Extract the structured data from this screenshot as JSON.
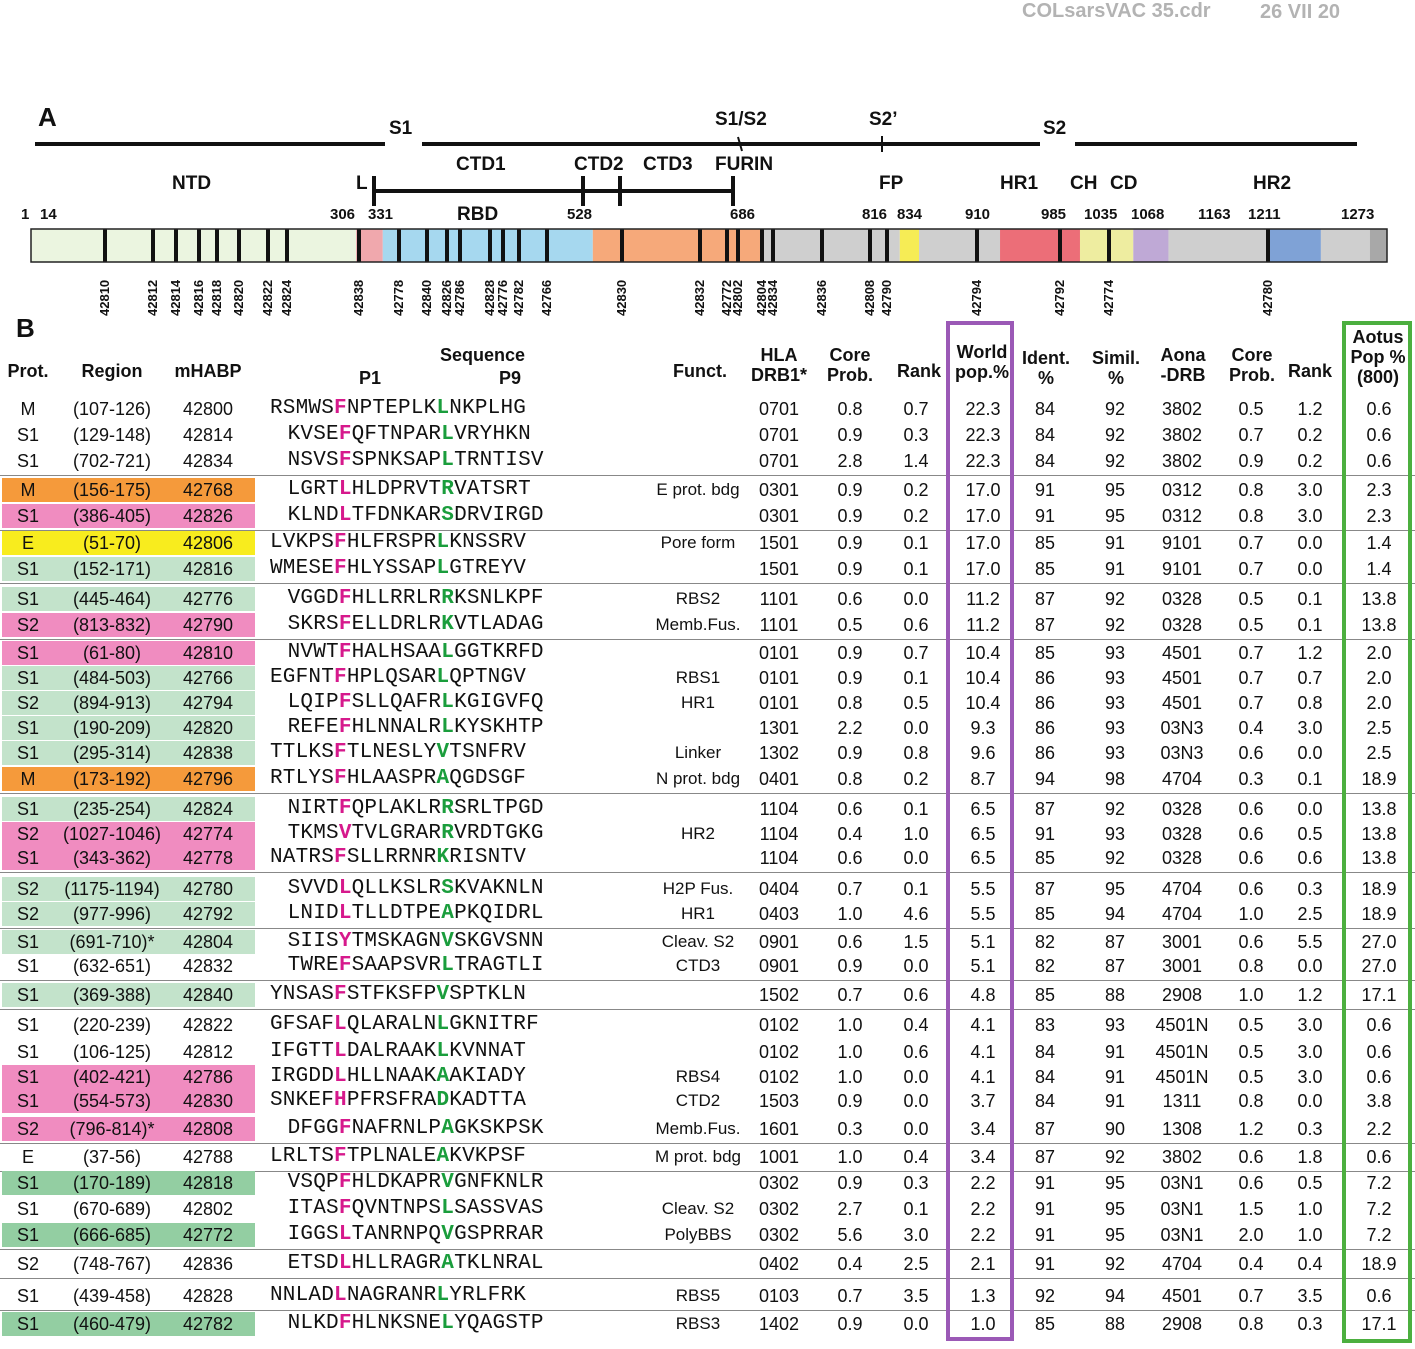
{
  "file_header": {
    "filename": "COLsarsVAC 35.cdr",
    "date": "26 VII 20"
  },
  "panel_a": {
    "label": "A",
    "subunits": [
      "S1",
      "S1/S2",
      "S2’",
      "S2"
    ],
    "domain_labels": [
      "NTD",
      "L",
      "CTD1",
      "CTD2",
      "CTD3",
      "FURIN",
      "RBD",
      "FP",
      "HR1",
      "CH",
      "CD",
      "HR2"
    ],
    "positions": [
      "1",
      "14",
      "306",
      "331",
      "528",
      "686",
      "816",
      "834",
      "910",
      "985",
      "1035",
      "1068",
      "1163",
      "1211",
      "1273"
    ],
    "peptide_codes": [
      "42810",
      "42812",
      "42814",
      "42816",
      "42818",
      "42820",
      "42822",
      "42824",
      "42838",
      "42778",
      "42840",
      "42826",
      "42786",
      "42828",
      "42776",
      "42782",
      "42766",
      "42830",
      "42832",
      "42772",
      "42802",
      "42804",
      "42834",
      "42836",
      "42808",
      "42790",
      "42794",
      "42792",
      "42774",
      "42780"
    ],
    "colors": {
      "ntd": "#ebf5e0",
      "linker": "#f0a8ad",
      "rbd": "#a6d8ef",
      "ctd": "#f6a97a",
      "gray": "#cfcfcf",
      "fp": "#f6ec55",
      "hr1": "#ec6e78",
      "ch": "#eeeda0",
      "cd": "#bfa9d6",
      "hr2": "#7fa2d6",
      "end": "#a8a8a8"
    }
  },
  "panel_b": {
    "label": "B",
    "headers": {
      "prot": "Prot.",
      "region": "Region",
      "mhabp": "mHABP",
      "sequence": "Sequence",
      "p1": "P1",
      "p9": "P9",
      "funct": "Funct.",
      "hla_1": "HLA",
      "hla_2": "DRB1*",
      "core_1": "Core",
      "core_2": "Prob.",
      "rank": "Rank",
      "world_1": "World",
      "world_2": "pop.%",
      "ident_1": "Ident.",
      "ident_2": "%",
      "simil_1": "Simil.",
      "simil_2": "%",
      "aona_1": "Aona",
      "aona_2": "-DRB",
      "core2_1": "Core",
      "core2_2": "Prob.",
      "rank2": "Rank",
      "aotus_1": "Aotus",
      "aotus_2": "Pop %",
      "aotus_3": "(800)"
    },
    "colors": {
      "world_box": "#9b59b6",
      "aotus_box": "#4caf3f",
      "orange": "#f59a3b",
      "pink": "#f08cc0",
      "green_light": "#c3e3cb",
      "green_dark": "#93cea2",
      "yellow": "#f8ec1e",
      "p1": "#d6198c",
      "p9": "#1a9d3c"
    },
    "rows": [
      {
        "prot": "M",
        "region": "(107-126)",
        "mhabp": "42800",
        "seq": "RSMWSFNPTEPLKLNKPLHG",
        "funct": "",
        "hla": "0701",
        "core": "0.8",
        "rank": "0.7",
        "world": "22.3",
        "ident": "84",
        "simil": "92",
        "aona": "3802",
        "core2": "0.5",
        "rank2": "1.2",
        "aotus": "0.6"
      },
      {
        "prot": "S1",
        "region": "(129-148)",
        "mhabp": "42814",
        "seq": "KVSEFQFTNPARLVRYHKN",
        "funct": "",
        "hla": "0701",
        "core": "0.9",
        "rank": "0.3",
        "world": "22.3",
        "ident": "84",
        "simil": "92",
        "aona": "3802",
        "core2": "0.7",
        "rank2": "0.2",
        "aotus": "0.6"
      },
      {
        "prot": "S1",
        "region": "(702-721)",
        "mhabp": "42834",
        "seq": "NSVSFSPNKSAPLTRNTISV",
        "funct": "",
        "hla": "0701",
        "core": "2.8",
        "rank": "1.4",
        "world": "22.3",
        "ident": "84",
        "simil": "92",
        "aona": "3802",
        "core2": "0.9",
        "rank2": "0.2",
        "aotus": "0.6"
      },
      {
        "prot": "M",
        "region": "(156-175)",
        "mhabp": "42768",
        "seq": "LGRTLHLDPRVTRVATSRT",
        "funct": "E prot. bdg",
        "hla": "0301",
        "core": "0.9",
        "rank": "0.2",
        "world": "17.0",
        "ident": "91",
        "simil": "95",
        "aona": "0312",
        "core2": "0.8",
        "rank2": "3.0",
        "aotus": "2.3"
      },
      {
        "prot": "S1",
        "region": "(386-405)",
        "mhabp": "42826",
        "seq": "KLNDLTFDNKARSDRVIRGD",
        "funct": "",
        "hla": "0301",
        "core": "0.9",
        "rank": "0.2",
        "world": "17.0",
        "ident": "91",
        "simil": "95",
        "aona": "0312",
        "core2": "0.8",
        "rank2": "3.0",
        "aotus": "2.3"
      },
      {
        "prot": "E",
        "region": "(51-70)",
        "mhabp": "42806",
        "seq": "LVKPSFHLFRSPRLKNSSRV",
        "funct": "Pore form",
        "hla": "1501",
        "core": "0.9",
        "rank": "0.1",
        "world": "17.0",
        "ident": "85",
        "simil": "91",
        "aona": "9101",
        "core2": "0.7",
        "rank2": "0.0",
        "aotus": "1.4"
      },
      {
        "prot": "S1",
        "region": "(152-171)",
        "mhabp": "42816",
        "seq": "WMESEFHLYSSAPLGTREYV",
        "funct": "",
        "hla": "1501",
        "core": "0.9",
        "rank": "0.1",
        "world": "17.0",
        "ident": "85",
        "simil": "91",
        "aona": "9101",
        "core2": "0.7",
        "rank2": "0.0",
        "aotus": "1.4"
      },
      {
        "prot": "S1",
        "region": "(445-464)",
        "mhabp": "42776",
        "seq": "VGGDFHLLRRLRRKSNLKPF",
        "funct": "RBS2",
        "hla": "1101",
        "core": "0.6",
        "rank": "0.0",
        "world": "11.2",
        "ident": "87",
        "simil": "92",
        "aona": "0328",
        "core2": "0.5",
        "rank2": "0.1",
        "aotus": "13.8"
      },
      {
        "prot": "S2",
        "region": "(813-832)",
        "mhabp": "42790",
        "seq": "SKRSFELLDRLRKVTLADAG",
        "funct": "Memb.Fus.",
        "hla": "1101",
        "core": "0.5",
        "rank": "0.6",
        "world": "11.2",
        "ident": "87",
        "simil": "92",
        "aona": "0328",
        "core2": "0.5",
        "rank2": "0.1",
        "aotus": "13.8"
      },
      {
        "prot": "S1",
        "region": "(61-80)",
        "mhabp": "42810",
        "seq": "NVWTFHALHSAALGGTKRFD",
        "funct": "",
        "hla": "0101",
        "core": "0.9",
        "rank": "0.7",
        "world": "10.4",
        "ident": "85",
        "simil": "93",
        "aona": "4501",
        "core2": "0.7",
        "rank2": "1.2",
        "aotus": "2.0"
      },
      {
        "prot": "S1",
        "region": "(484-503)",
        "mhabp": "42766",
        "seq": "EGFNTFHPLQSARLQPTNGV",
        "funct": "RBS1",
        "hla": "0101",
        "core": "0.9",
        "rank": "0.1",
        "world": "10.4",
        "ident": "86",
        "simil": "93",
        "aona": "4501",
        "core2": "0.7",
        "rank2": "0.7",
        "aotus": "2.0"
      },
      {
        "prot": "S2",
        "region": "(894-913)",
        "mhabp": "42794",
        "seq": "LQIPFSLLQAFRLKGIGVFQ",
        "funct": "HR1",
        "hla": "0101",
        "core": "0.8",
        "rank": "0.5",
        "world": "10.4",
        "ident": "86",
        "simil": "93",
        "aona": "4501",
        "core2": "0.7",
        "rank2": "0.8",
        "aotus": "2.0"
      },
      {
        "prot": "S1",
        "region": "(190-209)",
        "mhabp": "42820",
        "seq": "REFEFHLNNALRLKYSKHTP",
        "funct": "",
        "hla": "1301",
        "core": "2.2",
        "rank": "0.0",
        "world": "9.3",
        "ident": "86",
        "simil": "93",
        "aona": "03N3",
        "core2": "0.4",
        "rank2": "3.0",
        "aotus": "2.5"
      },
      {
        "prot": "S1",
        "region": "(295-314)",
        "mhabp": "42838",
        "seq": "TTLKSFTLNESLYVTSNFRV",
        "funct": "Linker",
        "hla": "1302",
        "core": "0.9",
        "rank": "0.8",
        "world": "9.6",
        "ident": "86",
        "simil": "93",
        "aona": "03N3",
        "core2": "0.6",
        "rank2": "0.0",
        "aotus": "2.5"
      },
      {
        "prot": "M",
        "region": "(173-192)",
        "mhabp": "42796",
        "seq": "RTLYSFHLAASPRAQGDSGF",
        "funct": "N prot. bdg",
        "hla": "0401",
        "core": "0.8",
        "rank": "0.2",
        "world": "8.7",
        "ident": "94",
        "simil": "98",
        "aona": "4704",
        "core2": "0.3",
        "rank2": "0.1",
        "aotus": "18.9"
      },
      {
        "prot": "S1",
        "region": "(235-254)",
        "mhabp": "42824",
        "seq": "NIRTFQPLAKLRRSRLTPGD",
        "funct": "",
        "hla": "1104",
        "core": "0.6",
        "rank": "0.1",
        "world": "6.5",
        "ident": "87",
        "simil": "92",
        "aona": "0328",
        "core2": "0.6",
        "rank2": "0.0",
        "aotus": "13.8"
      },
      {
        "prot": "S2",
        "region": "(1027-1046)",
        "mhabp": "42774",
        "seq": "TKMSVTVLGRARRVRDTGKG",
        "funct": "HR2",
        "hla": "1104",
        "core": "0.4",
        "rank": "1.0",
        "world": "6.5",
        "ident": "91",
        "simil": "93",
        "aona": "0328",
        "core2": "0.6",
        "rank2": "0.5",
        "aotus": "13.8"
      },
      {
        "prot": "S1",
        "region": "(343-362)",
        "mhabp": "42778",
        "seq": "NATRSFSLLRRNRKRISNTV",
        "funct": "",
        "hla": "1104",
        "core": "0.6",
        "rank": "0.0",
        "world": "6.5",
        "ident": "85",
        "simil": "92",
        "aona": "0328",
        "core2": "0.6",
        "rank2": "0.6",
        "aotus": "13.8"
      },
      {
        "prot": "S2",
        "region": "(1175-1194)",
        "mhabp": "42780",
        "seq": "SVVDLQLLKSLRSKVAKNLN",
        "funct": "H2P Fus.",
        "hla": "0404",
        "core": "0.7",
        "rank": "0.1",
        "world": "5.5",
        "ident": "87",
        "simil": "95",
        "aona": "4704",
        "core2": "0.6",
        "rank2": "0.3",
        "aotus": "18.9"
      },
      {
        "prot": "S2",
        "region": "(977-996)",
        "mhabp": "42792",
        "seq": "LNIDLTLLDTPEAPKQIDRL",
        "funct": "HR1",
        "hla": "0403",
        "core": "1.0",
        "rank": "4.6",
        "world": "5.5",
        "ident": "85",
        "simil": "94",
        "aona": "4704",
        "core2": "1.0",
        "rank2": "2.5",
        "aotus": "18.9"
      },
      {
        "prot": "S1",
        "region": "(691-710)*",
        "mhabp": "42804",
        "seq": "SIISYTMSKAGNVSKGVSNN",
        "funct": "Cleav. S2",
        "hla": "0901",
        "core": "0.6",
        "rank": "1.5",
        "world": "5.1",
        "ident": "82",
        "simil": "87",
        "aona": "3001",
        "core2": "0.6",
        "rank2": "5.5",
        "aotus": "27.0"
      },
      {
        "prot": "S1",
        "region": "(632-651)",
        "mhabp": "42832",
        "seq": "TWREFSAAPSVRLTRAGTLI",
        "funct": "CTD3",
        "hla": "0901",
        "core": "0.9",
        "rank": "0.0",
        "world": "5.1",
        "ident": "82",
        "simil": "87",
        "aona": "3001",
        "core2": "0.8",
        "rank2": "0.0",
        "aotus": "27.0"
      },
      {
        "prot": "S1",
        "region": "(369-388)",
        "mhabp": "42840",
        "seq": "YNSASFSTFKSFPVSPTKLN",
        "funct": "",
        "hla": "1502",
        "core": "0.7",
        "rank": "0.6",
        "world": "4.8",
        "ident": "85",
        "simil": "88",
        "aona": "2908",
        "core2": "1.0",
        "rank2": "1.2",
        "aotus": "17.1"
      },
      {
        "prot": "S1",
        "region": "(220-239)",
        "mhabp": "42822",
        "seq": "GFSAFLQLARALNLGKNITRF",
        "funct": "",
        "hla": "0102",
        "core": "1.0",
        "rank": "0.4",
        "world": "4.1",
        "ident": "83",
        "simil": "93",
        "aona": "4501N",
        "core2": "0.5",
        "rank2": "3.0",
        "aotus": "0.6"
      },
      {
        "prot": "S1",
        "region": "(106-125)",
        "mhabp": "42812",
        "seq": "IFGTTLDALRAAKLKVNNAT",
        "funct": "",
        "hla": "0102",
        "core": "1.0",
        "rank": "0.6",
        "world": "4.1",
        "ident": "84",
        "simil": "91",
        "aona": "4501N",
        "core2": "0.5",
        "rank2": "3.0",
        "aotus": "0.6"
      },
      {
        "prot": "S1",
        "region": "(402-421)",
        "mhabp": "42786",
        "seq": "IRGDDLHLLNAAKAAKIADY",
        "funct": "RBS4",
        "hla": "0102",
        "core": "1.0",
        "rank": "0.0",
        "world": "4.1",
        "ident": "84",
        "simil": "91",
        "aona": "4501N",
        "core2": "0.5",
        "rank2": "3.0",
        "aotus": "0.6"
      },
      {
        "prot": "S1",
        "region": "(554-573)",
        "mhabp": "42830",
        "seq": "SNKEFHPFRSFRADKADTTA",
        "funct": "CTD2",
        "hla": "1503",
        "core": "0.9",
        "rank": "0.0",
        "world": "3.7",
        "ident": "84",
        "simil": "91",
        "aona": "1311",
        "core2": "0.8",
        "rank2": "0.0",
        "aotus": "3.8"
      },
      {
        "prot": "S2",
        "region": "(796-814)*",
        "mhabp": "42808",
        "seq": "DFGGFNAFRNLPAGKSKPSK",
        "funct": "Memb.Fus.",
        "hla": "1601",
        "core": "0.3",
        "rank": "0.0",
        "world": "3.4",
        "ident": "87",
        "simil": "90",
        "aona": "1308",
        "core2": "1.2",
        "rank2": "0.3",
        "aotus": "2.2"
      },
      {
        "prot": "E",
        "region": "(37-56)",
        "mhabp": "42788",
        "seq": "LRLTSFTPLNALEAKVKPSF",
        "funct": "M prot. bdg",
        "hla": "1001",
        "core": "1.0",
        "rank": "0.4",
        "world": "3.4",
        "ident": "87",
        "simil": "92",
        "aona": "3802",
        "core2": "0.6",
        "rank2": "1.8",
        "aotus": "0.6"
      },
      {
        "prot": "S1",
        "region": "(170-189)",
        "mhabp": "42818",
        "seq": "VSQPFHLDKAPRVGNFKNLR",
        "funct": "",
        "hla": "0302",
        "core": "0.9",
        "rank": "0.3",
        "world": "2.2",
        "ident": "91",
        "simil": "95",
        "aona": "03N1",
        "core2": "0.6",
        "rank2": "0.5",
        "aotus": "7.2"
      },
      {
        "prot": "S1",
        "region": "(670-689)",
        "mhabp": "42802",
        "seq": "ITASFQVNTNPSLSASSVAS",
        "funct": "Cleav. S2",
        "hla": "0302",
        "core": "2.7",
        "rank": "0.1",
        "world": "2.2",
        "ident": "91",
        "simil": "95",
        "aona": "03N1",
        "core2": "1.5",
        "rank2": "1.0",
        "aotus": "7.2"
      },
      {
        "prot": "S1",
        "region": "(666-685)",
        "mhabp": "42772",
        "seq": "IGGSLTANRNPQVGSPRRAR",
        "funct": "PolyBBS",
        "hla": "0302",
        "core": "5.6",
        "rank": "3.0",
        "world": "2.2",
        "ident": "91",
        "simil": "95",
        "aona": "03N1",
        "core2": "2.0",
        "rank2": "1.0",
        "aotus": "7.2"
      },
      {
        "prot": "S2",
        "region": "(748-767)",
        "mhabp": "42836",
        "seq": "ETSDLHLLRAGRATKLNRAL",
        "funct": "",
        "hla": "0402",
        "core": "0.4",
        "rank": "2.5",
        "world": "2.1",
        "ident": "91",
        "simil": "92",
        "aona": "4704",
        "core2": "0.4",
        "rank2": "0.4",
        "aotus": "18.9"
      },
      {
        "prot": "S1",
        "region": "(439-458)",
        "mhabp": "42828",
        "seq": "NNLADLNAGRANRLYRLFRK",
        "funct": "RBS5",
        "hla": "0103",
        "core": "0.7",
        "rank": "3.5",
        "world": "1.3",
        "ident": "92",
        "simil": "94",
        "aona": "4501",
        "core2": "0.7",
        "rank2": "3.5",
        "aotus": "0.6"
      },
      {
        "prot": "S1",
        "region": "(460-479)",
        "mhabp": "42782",
        "seq": "NLKDFHLNKSNELYQAGSTP",
        "funct": "RBS3",
        "hla": "1402",
        "core": "0.9",
        "rank": "0.0",
        "world": "1.0",
        "ident": "85",
        "simil": "88",
        "aona": "2908",
        "core2": "0.8",
        "rank2": "0.3",
        "aotus": "17.1"
      }
    ]
  }
}
